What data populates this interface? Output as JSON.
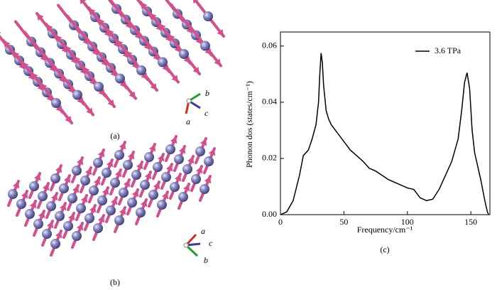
{
  "figure": {
    "panels": [
      {
        "label": "(a)",
        "axes": [
          "b",
          "c",
          "a"
        ]
      },
      {
        "label": "(b)",
        "axes": [
          "a",
          "c",
          "b"
        ]
      }
    ]
  },
  "chart_data": {
    "type": "line",
    "label": "(c)",
    "xlabel": "Frequency/cm⁻¹",
    "ylabel": "Phonon dos (states/cm⁻¹)",
    "x": [
      0,
      5,
      10,
      15,
      18,
      22,
      25,
      28,
      30,
      31,
      32,
      33,
      34,
      36,
      38,
      40,
      45,
      50,
      55,
      60,
      65,
      70,
      75,
      80,
      85,
      90,
      95,
      100,
      105,
      110,
      115,
      120,
      125,
      130,
      135,
      140,
      143,
      145,
      147,
      149,
      151,
      153,
      155,
      158,
      161,
      163,
      164
    ],
    "series": [
      {
        "name": "3.6 TPa",
        "color": "#000000",
        "values": [
          0,
          0.001,
          0.005,
          0.014,
          0.021,
          0.023,
          0.027,
          0.032,
          0.04,
          0.05,
          0.0575,
          0.054,
          0.046,
          0.037,
          0.034,
          0.032,
          0.029,
          0.026,
          0.023,
          0.021,
          0.019,
          0.0165,
          0.0155,
          0.014,
          0.0125,
          0.0115,
          0.0105,
          0.0095,
          0.009,
          0.006,
          0.005,
          0.0055,
          0.009,
          0.014,
          0.019,
          0.027,
          0.038,
          0.047,
          0.0505,
          0.045,
          0.03,
          0.022,
          0.018,
          0.012,
          0.005,
          0.001,
          0
        ]
      }
    ],
    "xlim": [
      0,
      165
    ],
    "xticks": [
      0,
      50,
      100,
      150
    ],
    "ylim": [
      0,
      0.065
    ],
    "yticks": [
      {
        "value": 0,
        "label": "0.00"
      },
      {
        "value": 0.02,
        "label": "0.02"
      },
      {
        "value": 0.04,
        "label": "0.04"
      },
      {
        "value": 0.06,
        "label": "0.06"
      }
    ],
    "legend": "upper right",
    "grid": false
  }
}
